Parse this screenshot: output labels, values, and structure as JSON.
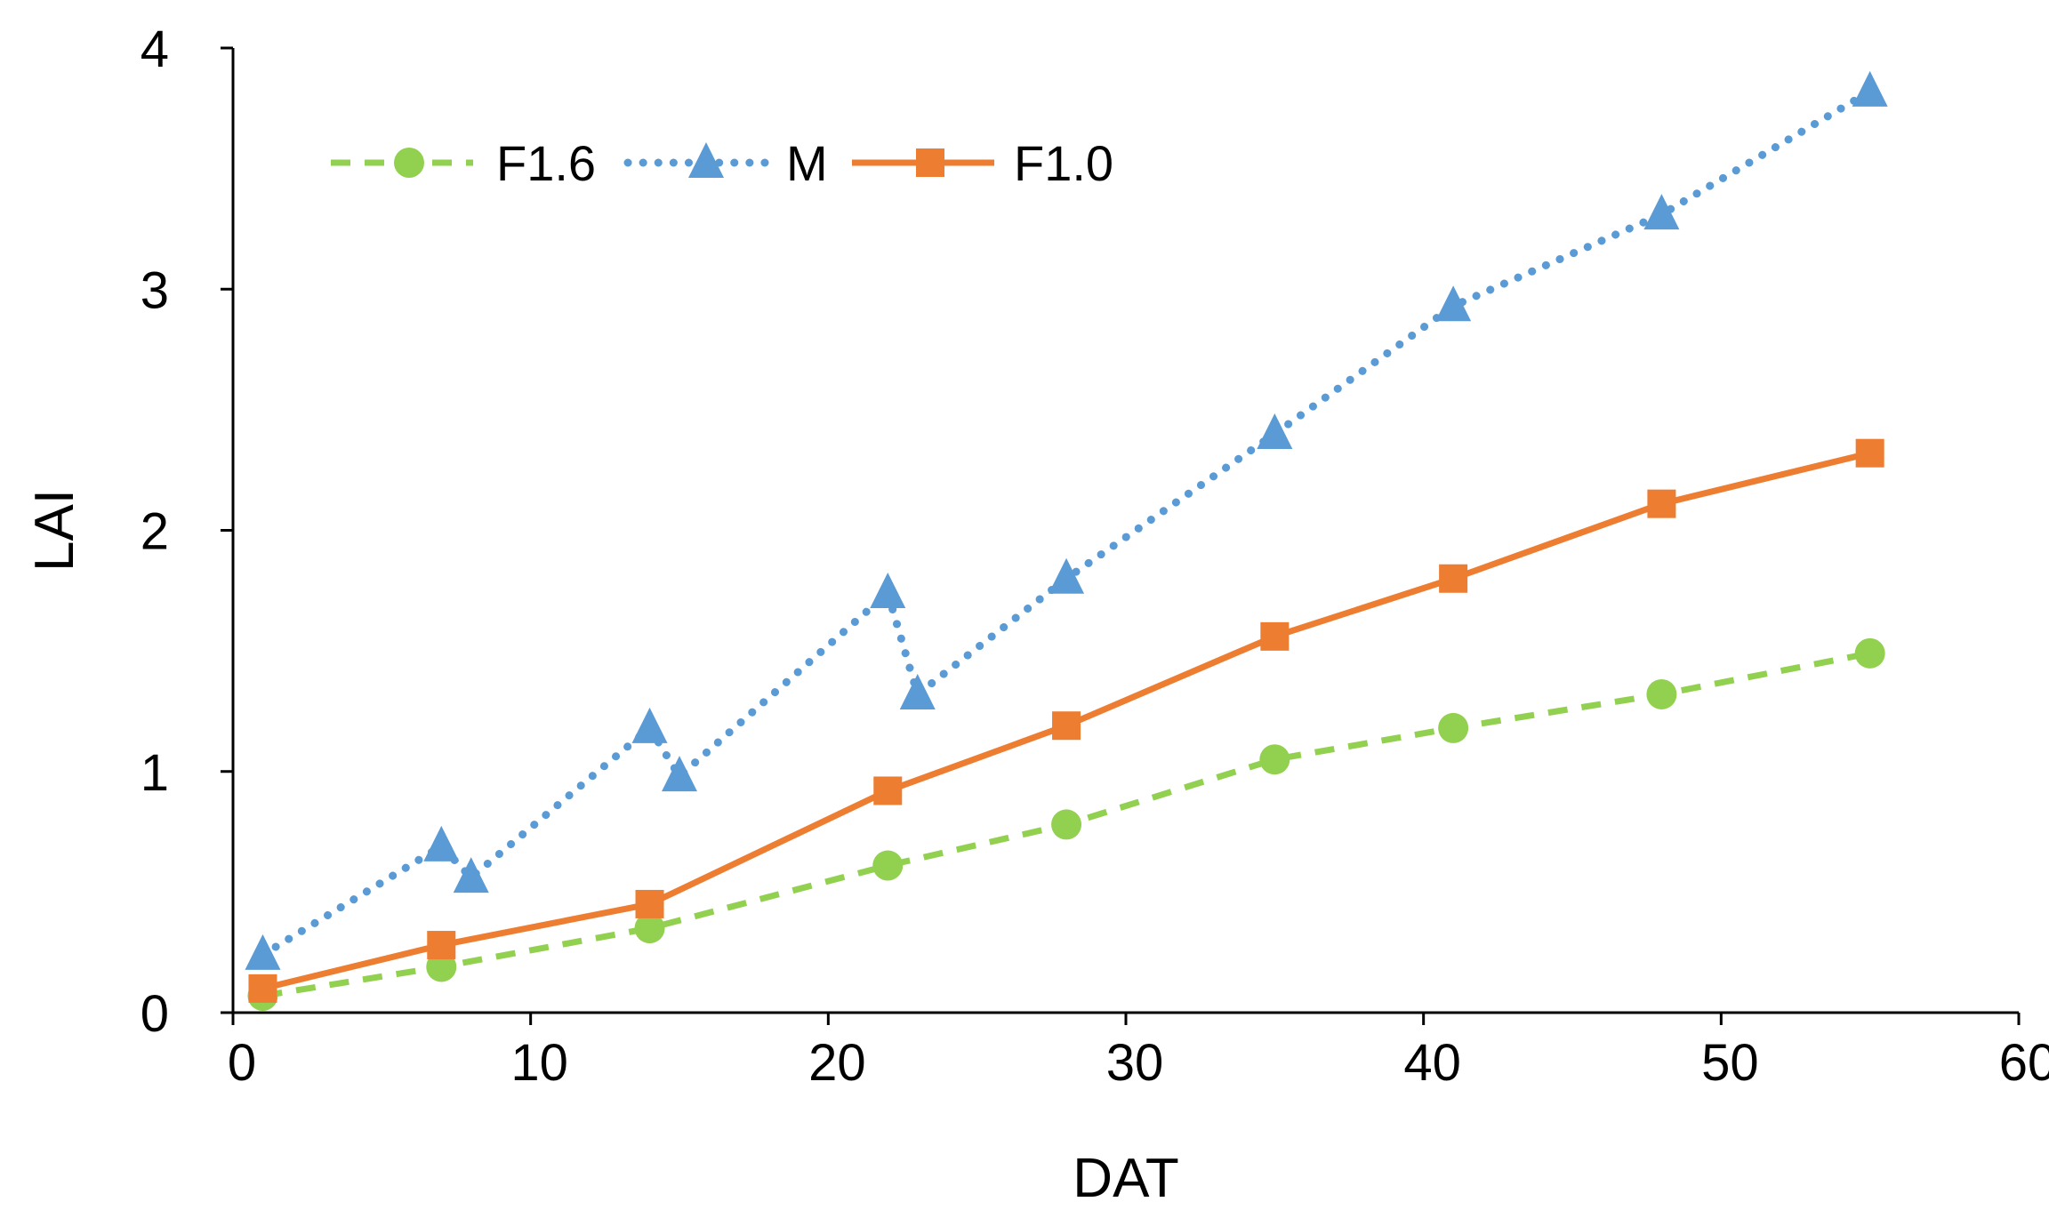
{
  "chart_data": {
    "type": "line",
    "title": "",
    "xlabel": "DAT",
    "ylabel": "LAI",
    "xlim": [
      0,
      60
    ],
    "ylim": [
      0,
      4
    ],
    "xticks": [
      "0",
      "10",
      "20",
      "30",
      "40",
      "50",
      "60"
    ],
    "yticks": [
      "0",
      "1",
      "2",
      "3",
      "4"
    ],
    "grid": false,
    "legend_position": "top-left",
    "series": [
      {
        "name": "F1.6",
        "color": "#92D050",
        "line_style": "dashed",
        "marker": "circle",
        "x": [
          1,
          7,
          14,
          22,
          28,
          35,
          41,
          48,
          55
        ],
        "y": [
          0.07,
          0.19,
          0.35,
          0.61,
          0.78,
          1.05,
          1.18,
          1.32,
          1.49
        ]
      },
      {
        "name": "M",
        "color": "#5B9BD5",
        "line_style": "dotted",
        "marker": "triangle",
        "x": [
          1,
          7,
          8,
          14,
          15,
          22,
          23,
          28,
          35,
          41,
          48,
          55
        ],
        "y": [
          0.24,
          0.69,
          0.56,
          1.18,
          0.98,
          1.74,
          1.32,
          1.8,
          2.4,
          2.93,
          3.31,
          3.82
        ]
      },
      {
        "name": "F1.0",
        "color": "#ED7D31",
        "line_style": "solid",
        "marker": "square",
        "x": [
          1,
          7,
          14,
          22,
          28,
          35,
          41,
          48,
          55
        ],
        "y": [
          0.1,
          0.28,
          0.45,
          0.92,
          1.19,
          1.56,
          1.8,
          2.11,
          2.32
        ]
      }
    ]
  }
}
